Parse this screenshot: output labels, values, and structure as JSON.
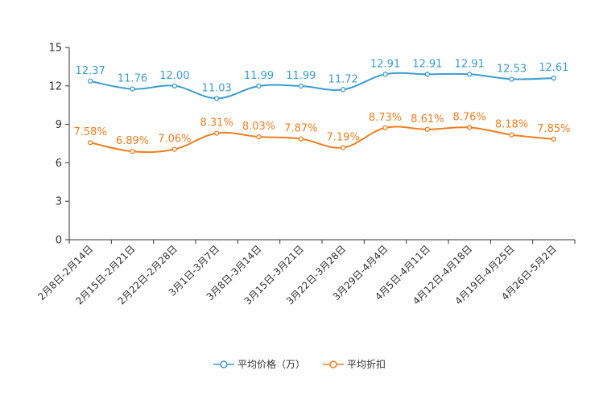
{
  "chart_data": {
    "type": "line",
    "categories": [
      "2月8日-2月14日",
      "2月15日-2月21日",
      "2月22日-2月28日",
      "3月1日-3月7日",
      "3月8日-3月14日",
      "3月15日-3月21日",
      "3月22日-3月28日",
      "3月29日-4月4日",
      "4月5日-4月11日",
      "4月12日-4月18日",
      "4月19日-4月25日",
      "4月26日-5月2日"
    ],
    "series": [
      {
        "name": "平均价格（万）",
        "color": "#3c9ccf",
        "values": [
          12.37,
          11.76,
          12.0,
          11.03,
          11.99,
          11.99,
          11.72,
          12.91,
          12.91,
          12.91,
          12.53,
          12.61
        ],
        "labels": [
          "12.37",
          "11.76",
          "12.00",
          "11.03",
          "11.99",
          "11.99",
          "11.72",
          "12.91",
          "12.91",
          "12.91",
          "12.53",
          "12.61"
        ]
      },
      {
        "name": "平均折扣",
        "color": "#f07d1e",
        "values": [
          7.58,
          6.89,
          7.06,
          8.31,
          8.03,
          7.87,
          7.19,
          8.73,
          8.61,
          8.76,
          8.18,
          7.85
        ],
        "labels": [
          "7.58%",
          "6.89%",
          "7.06%",
          "8.31%",
          "8.03%",
          "7.87%",
          "7.19%",
          "8.73%",
          "8.61%",
          "8.76%",
          "8.18%",
          "7.85%"
        ]
      }
    ],
    "yticks": [
      0,
      3,
      6,
      9,
      12,
      15
    ],
    "ylim": [
      0,
      15
    ],
    "title": "",
    "xlabel": "",
    "ylabel": "",
    "grid": false,
    "legend_position": "bottom-center"
  }
}
